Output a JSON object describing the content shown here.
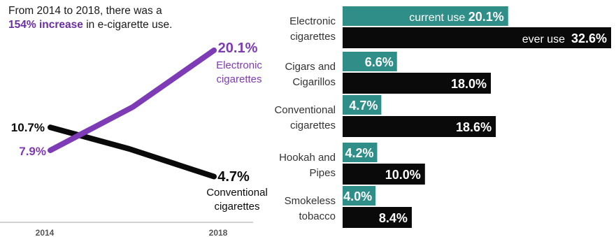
{
  "headline": {
    "part1": "From 2014 to 2018, there was a ",
    "highlight1": "154%",
    "part2": " ",
    "highlight2": "increase",
    "part3": " in e-cigarette use."
  },
  "colors": {
    "purple": "#7d3cb5",
    "black": "#0a0a0a",
    "teal": "#2f8f88",
    "axis_text": "#555555"
  },
  "chart_data": [
    {
      "type": "line",
      "x": [
        "2014",
        "2018"
      ],
      "series": [
        {
          "name": "Electronic cigarettes",
          "values": [
            7.9,
            20.1
          ],
          "value_labels": [
            "7.9%",
            "20.1%"
          ],
          "label_lines": [
            "Electronic",
            "cigarettes"
          ],
          "color": "#7d3cb5"
        },
        {
          "name": "Conventional cigarettes",
          "values": [
            10.7,
            4.7
          ],
          "value_labels": [
            "10.7%",
            "4.7%"
          ],
          "label_lines": [
            "Conventional",
            "cigarettes"
          ],
          "color": "#0a0a0a"
        }
      ],
      "xlabel": "",
      "ylabel": "",
      "grid": false
    },
    {
      "type": "bar",
      "orientation": "horizontal",
      "categories": [
        {
          "lines": [
            "Electronic",
            "cigarettes"
          ]
        },
        {
          "lines": [
            "Cigars and",
            "Cigarillos"
          ]
        },
        {
          "lines": [
            "Conventional",
            "cigarettes"
          ]
        },
        {
          "lines": [
            "Hookah and",
            "Pipes"
          ]
        },
        {
          "lines": [
            "Smokeless",
            "tobacco"
          ]
        }
      ],
      "series": [
        {
          "name": "current use",
          "values": [
            20.1,
            6.6,
            4.7,
            4.2,
            4.0
          ],
          "labels": [
            "20.1%",
            "6.6%",
            "4.7%",
            "4.2%",
            "4.0%"
          ],
          "color": "#2f8f88"
        },
        {
          "name": "ever use",
          "values": [
            32.6,
            18.0,
            18.6,
            10.0,
            8.4
          ],
          "labels": [
            "32.6%",
            "18.0%",
            "18.6%",
            "10.0%",
            "8.4%"
          ],
          "color": "#0a0a0a"
        }
      ],
      "xlim": [
        0,
        32.6
      ],
      "grid": false
    }
  ]
}
